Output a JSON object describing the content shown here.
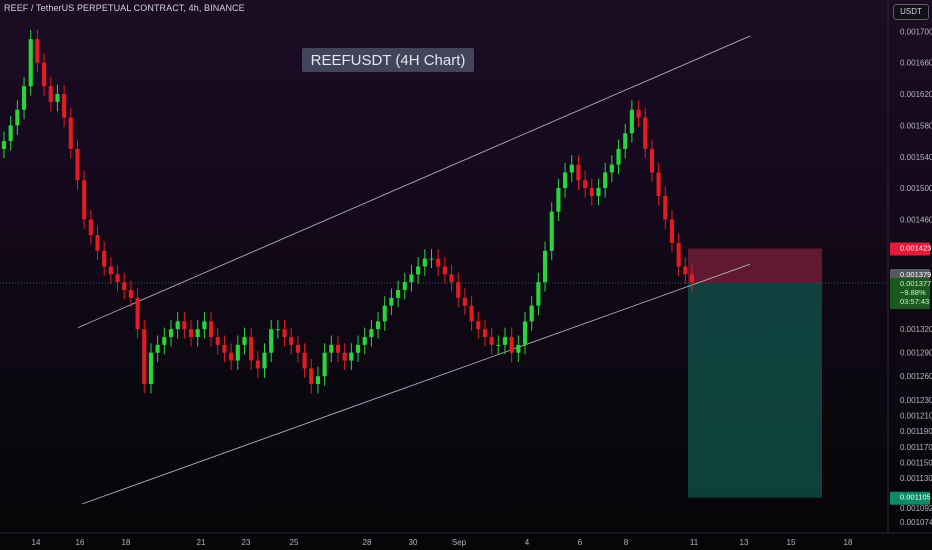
{
  "header": {
    "symbol_line": "REEF / TetherUS PERPETUAL CONTRACT, 4h, BINANCE"
  },
  "currency": "USDT",
  "chart_data": {
    "type": "candlestick",
    "title": "REEFUSDT (4H Chart)",
    "ylim": [
      0.00106,
      0.00174
    ],
    "y_ticks": [
      "0.001700",
      "0.001660",
      "0.001620",
      "0.001580",
      "0.001540",
      "0.001500",
      "0.001460",
      "0.001320",
      "0.001290",
      "0.001260",
      "0.001230",
      "0.001210",
      "0.001190",
      "0.001170",
      "0.001150",
      "0.001130",
      "0.001092",
      "0.001074"
    ],
    "x_ticks": [
      "14",
      "16",
      "18",
      "21",
      "23",
      "25",
      "28",
      "30",
      "Sep",
      "4",
      "6",
      "8",
      "11",
      "13",
      "15",
      "18"
    ],
    "price_labels": {
      "stop_loss": "0.001423",
      "entry": "0.001379",
      "current_price": "0.001377",
      "change_pct": "−9.88%",
      "countdown": "03:57:43",
      "take_profit": "0.001105"
    },
    "levels": {
      "stop_loss": 0.001423,
      "entry": 0.001379,
      "take_profit": 0.001105
    },
    "channel": {
      "upper": [
        [
          0.00132,
          0.001322
        ],
        [
          1.0,
          0.001694
        ]
      ],
      "lower": [
        [
          0.00138,
          0.001097
        ],
        [
          1.0,
          0.001403
        ]
      ]
    },
    "closes": [
      0.00156,
      0.00158,
      0.0016,
      0.00163,
      0.00169,
      0.00166,
      0.00163,
      0.00161,
      0.00162,
      0.00159,
      0.00155,
      0.00151,
      0.00146,
      0.00144,
      0.00142,
      0.0014,
      0.00139,
      0.00138,
      0.00137,
      0.00136,
      0.00132,
      0.00125,
      0.00129,
      0.0013,
      0.00131,
      0.00132,
      0.00133,
      0.00132,
      0.00131,
      0.00132,
      0.00133,
      0.00131,
      0.0013,
      0.00129,
      0.00128,
      0.0013,
      0.00131,
      0.00128,
      0.00127,
      0.00129,
      0.00132,
      0.00132,
      0.00131,
      0.0013,
      0.00129,
      0.00127,
      0.00125,
      0.00126,
      0.00129,
      0.0013,
      0.00129,
      0.00128,
      0.00129,
      0.0013,
      0.00131,
      0.00132,
      0.00133,
      0.00135,
      0.00136,
      0.00137,
      0.00138,
      0.00139,
      0.0014,
      0.00141,
      0.00141,
      0.0014,
      0.00139,
      0.00138,
      0.00136,
      0.00135,
      0.00133,
      0.00132,
      0.00131,
      0.0013,
      0.0013,
      0.00131,
      0.00129,
      0.0013,
      0.00133,
      0.00135,
      0.00138,
      0.00142,
      0.00147,
      0.0015,
      0.00152,
      0.00153,
      0.00151,
      0.0015,
      0.00149,
      0.0015,
      0.00152,
      0.00153,
      0.00155,
      0.00157,
      0.0016,
      0.00159,
      0.00155,
      0.00152,
      0.00149,
      0.00146,
      0.00143,
      0.0014,
      0.00139,
      0.00138
    ]
  }
}
